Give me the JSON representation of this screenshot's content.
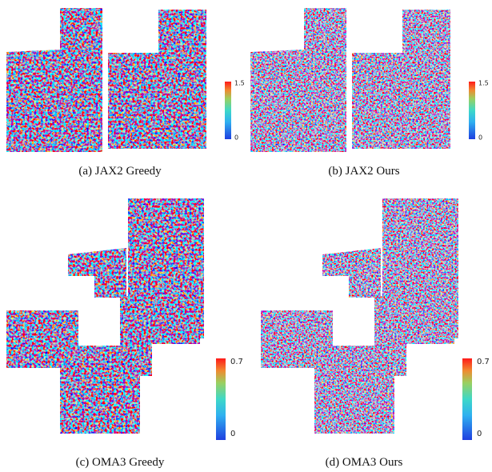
{
  "panels": [
    {
      "caption": "(a) JAX2 Greedy",
      "colorbar_max": 1.5,
      "colorbar_min": 0
    },
    {
      "caption": "(b) JAX2 Ours",
      "colorbar_max": 1.5,
      "colorbar_min": 0
    },
    {
      "caption": "(c) OMA3 Greedy",
      "colorbar_max": 0.7,
      "colorbar_min": 0
    },
    {
      "caption": "(d) OMA3 Ours",
      "colorbar_max": 0.7,
      "colorbar_min": 0
    }
  ]
}
